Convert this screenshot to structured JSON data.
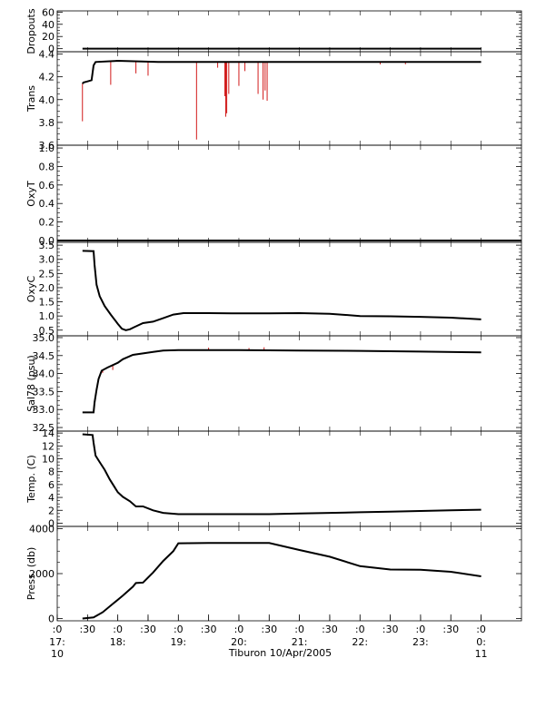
{
  "colors": {
    "main": "#000000",
    "spikes": "#cc0000",
    "background": "#ffffff"
  },
  "chart_data": {
    "type": "line",
    "title": "",
    "time_axis": {
      "xlabel": "Tiburon 10/Apr/2005",
      "x_unit": "minutes after 17:00 on 10/Apr/2005",
      "xlim": [
        0,
        460
      ],
      "ticks": [
        {
          "x": 0,
          "top": ":0",
          "mid": "17:",
          "bot": "10"
        },
        {
          "x": 30,
          "top": ":30",
          "mid": "",
          "bot": ""
        },
        {
          "x": 60,
          "top": ":0",
          "mid": "18:",
          "bot": ""
        },
        {
          "x": 90,
          "top": ":30",
          "mid": "",
          "bot": ""
        },
        {
          "x": 120,
          "top": ":0",
          "mid": "19:",
          "bot": ""
        },
        {
          "x": 150,
          "top": ":30",
          "mid": "",
          "bot": ""
        },
        {
          "x": 180,
          "top": ":0",
          "mid": "20:",
          "bot": ""
        },
        {
          "x": 210,
          "top": ":30",
          "mid": "",
          "bot": ""
        },
        {
          "x": 240,
          "top": ":0",
          "mid": "21:",
          "bot": ""
        },
        {
          "x": 270,
          "top": ":30",
          "mid": "",
          "bot": ""
        },
        {
          "x": 300,
          "top": ":0",
          "mid": "22:",
          "bot": ""
        },
        {
          "x": 330,
          "top": ":30",
          "mid": "",
          "bot": ""
        },
        {
          "x": 360,
          "top": ":0",
          "mid": "23:",
          "bot": ""
        },
        {
          "x": 390,
          "top": ":30",
          "mid": "",
          "bot": ""
        },
        {
          "x": 420,
          "top": ":0",
          "mid": "0:",
          "bot": "11"
        }
      ]
    },
    "panels": [
      {
        "id": "dropouts",
        "ylabel": "Dropouts",
        "ylim": [
          -5,
          62
        ],
        "yticks": [
          0,
          20,
          40,
          60
        ],
        "tick_labels": [
          "0",
          "20",
          "40",
          "60"
        ],
        "series": [
          {
            "x": [
              25,
              420
            ],
            "y": [
              0,
              0
            ]
          }
        ],
        "spikes": []
      },
      {
        "id": "trans",
        "ylabel": "Trans",
        "ylim": [
          3.6,
          4.42
        ],
        "yticks": [
          3.6,
          3.8,
          4.0,
          4.2,
          4.4
        ],
        "tick_labels": [
          "3.6",
          "3.8",
          "4.0",
          "4.2",
          "4.4"
        ],
        "series": [
          {
            "x": [
              25,
              26,
              30,
              34,
              36,
              38,
              60,
              100,
              420
            ],
            "y": [
              4.14,
              4.15,
              4.16,
              4.17,
              4.3,
              4.33,
              4.34,
              4.33,
              4.33
            ]
          }
        ],
        "spikes": [
          {
            "x": 25,
            "y": 3.81
          },
          {
            "x": 53,
            "y": 4.13
          },
          {
            "x": 78,
            "y": 4.23
          },
          {
            "x": 90,
            "y": 4.21
          },
          {
            "x": 138,
            "y": 3.65
          },
          {
            "x": 159,
            "y": 4.28
          },
          {
            "x": 166,
            "y": 4.03
          },
          {
            "x": 167,
            "y": 3.85
          },
          {
            "x": 168,
            "y": 3.88
          },
          {
            "x": 170,
            "y": 4.05
          },
          {
            "x": 180,
            "y": 4.12
          },
          {
            "x": 186,
            "y": 4.25
          },
          {
            "x": 199,
            "y": 4.05
          },
          {
            "x": 204,
            "y": 4.0
          },
          {
            "x": 206,
            "y": 4.08
          },
          {
            "x": 208,
            "y": 3.99
          },
          {
            "x": 320,
            "y": 4.31
          },
          {
            "x": 345,
            "y": 4.31
          }
        ]
      },
      {
        "id": "oxyt",
        "ylabel": "OxyT",
        "ylim": [
          -0.02,
          1.03
        ],
        "yticks": [
          0.0,
          0.2,
          0.4,
          0.6,
          0.8,
          1.0
        ],
        "tick_labels": [
          "0.0",
          "0.2",
          "0.4",
          "0.6",
          "0.8",
          "1.0"
        ],
        "series": [
          {
            "x": [
              0,
              460
            ],
            "y": [
              0.0,
              0.0
            ]
          }
        ],
        "spikes": []
      },
      {
        "id": "oxyc",
        "ylabel": "OxyC",
        "ylim": [
          0.3,
          3.6
        ],
        "yticks": [
          0.5,
          1.0,
          1.5,
          2.0,
          2.5,
          3.0,
          3.5
        ],
        "tick_labels": [
          "0.5",
          "1.0",
          "1.5",
          "2.0",
          "2.5",
          "3.0",
          "3.5"
        ],
        "series": [
          {
            "x": [
              25,
              36,
              37,
              39,
              42,
              47,
              53,
              60,
              64,
              68,
              72,
              76,
              85,
              95,
              105,
              115,
              125,
              150,
              180,
              210,
              240,
              270,
              300,
              330,
              360,
              390,
              420
            ],
            "y": [
              3.3,
              3.29,
              2.8,
              2.1,
              1.7,
              1.35,
              1.05,
              0.72,
              0.55,
              0.5,
              0.53,
              0.6,
              0.75,
              0.8,
              0.92,
              1.05,
              1.1,
              1.1,
              1.09,
              1.09,
              1.1,
              1.08,
              1.0,
              0.99,
              0.97,
              0.94,
              0.88
            ]
          }
        ],
        "spikes": []
      },
      {
        "id": "sal78",
        "ylabel": "Sal78 (psu)",
        "ylim": [
          32.4,
          35.05
        ],
        "yticks": [
          32.5,
          33.0,
          33.5,
          34.0,
          34.5,
          35.0
        ],
        "tick_labels": [
          "32.5",
          "33.0",
          "33.5",
          "34.0",
          "34.5",
          "35.0"
        ],
        "series": [
          {
            "x": [
              25,
              36,
              37,
              39,
              41,
              44,
              50,
              60,
              65,
              75,
              85,
              95,
              105,
              120,
              180,
              240,
              300,
              360,
              420
            ],
            "y": [
              32.92,
              32.92,
              33.2,
              33.55,
              33.85,
              34.08,
              34.17,
              34.3,
              34.4,
              34.52,
              34.56,
              34.6,
              34.64,
              34.65,
              34.65,
              34.64,
              34.63,
              34.61,
              34.59
            ]
          }
        ],
        "spikes": [
          {
            "x": 36,
            "y": 33.05
          },
          {
            "x": 40,
            "y": 33.7
          },
          {
            "x": 45,
            "y": 34.02
          },
          {
            "x": 55,
            "y": 34.1
          },
          {
            "x": 150,
            "y": 34.72
          },
          {
            "x": 190,
            "y": 34.71
          },
          {
            "x": 205,
            "y": 34.73
          }
        ]
      },
      {
        "id": "temp",
        "ylabel": "Temp. (C)",
        "ylim": [
          -0.5,
          14.3
        ],
        "yticks": [
          0,
          2,
          4,
          6,
          8,
          10,
          12,
          14
        ],
        "tick_labels": [
          "0",
          "2",
          "4",
          "6",
          "8",
          "10",
          "12",
          "14"
        ],
        "series": [
          {
            "x": [
              25,
              35,
              36,
              38,
              42,
              47,
              52,
              60,
              65,
              72,
              78,
              85,
              95,
              105,
              120,
              150,
              180,
              210,
              240,
              270,
              300,
              330,
              360,
              390,
              420
            ],
            "y": [
              13.8,
              13.7,
              12.5,
              10.5,
              9.5,
              8.3,
              6.8,
              4.8,
              4.1,
              3.4,
              2.6,
              2.6,
              2.0,
              1.6,
              1.4,
              1.4,
              1.4,
              1.4,
              1.5,
              1.6,
              1.7,
              1.8,
              1.9,
              2.0,
              2.1
            ]
          }
        ],
        "spikes": []
      },
      {
        "id": "press",
        "ylabel": "Press. (db)",
        "ylim": [
          -100,
          4100
        ],
        "yticks": [
          0,
          2000,
          4000
        ],
        "tick_labels": [
          "0",
          "2000",
          "4000"
        ],
        "series": [
          {
            "x": [
              25,
              36,
              45,
              55,
              65,
              75,
              78,
              85,
              95,
              105,
              115,
              120,
              150,
              180,
              210,
              240,
              270,
              300,
              330,
              360,
              390,
              420
            ],
            "y": [
              0,
              50,
              280,
              650,
              1020,
              1420,
              1580,
              1600,
              2050,
              2560,
              3000,
              3350,
              3360,
              3360,
              3360,
              3050,
              2750,
              2330,
              2180,
              2170,
              2080,
              1880
            ]
          }
        ],
        "spikes": []
      }
    ]
  }
}
